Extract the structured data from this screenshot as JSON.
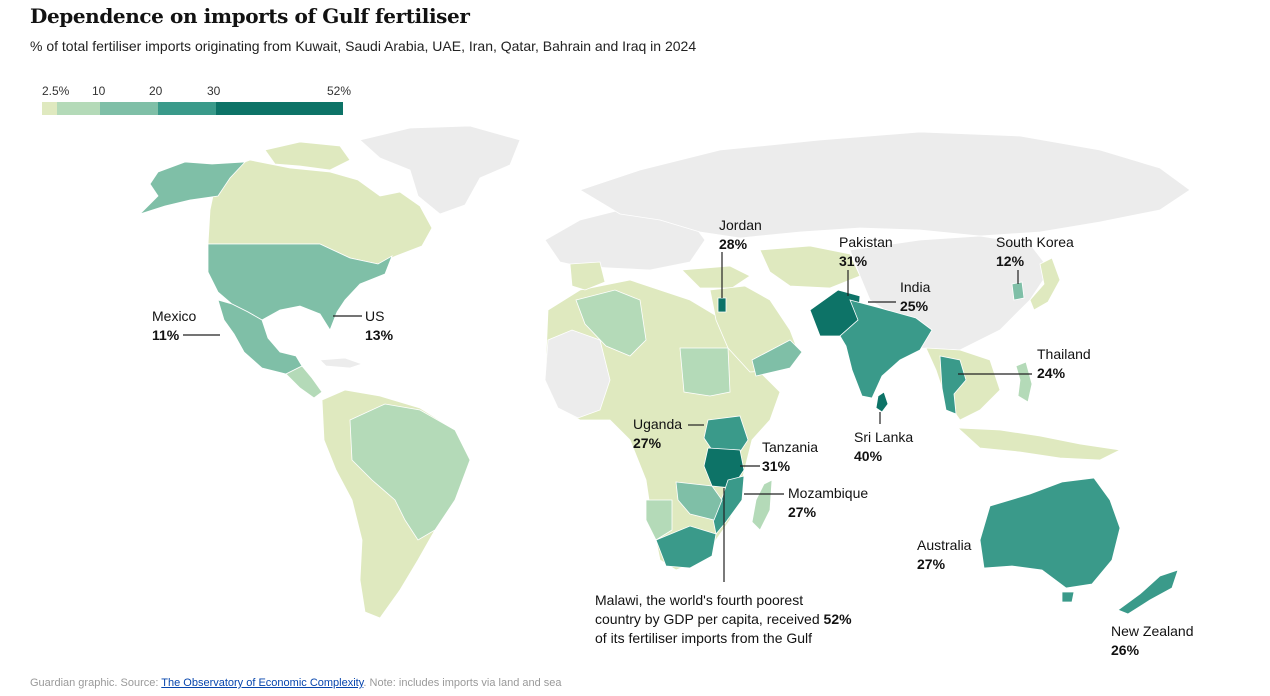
{
  "title": "Dependence on imports of Gulf fertiliser",
  "subtitle": "% of total fertiliser imports originating from Kuwait, Saudi Arabia, UAE, Iran, Qatar, Bahrain and Iraq in 2024",
  "legend": {
    "labels": [
      "2.5%",
      "10",
      "20",
      "30",
      "52%"
    ],
    "colors": [
      "#dfe9bf",
      "#b4dab8",
      "#7fbfa7",
      "#3a9a8a",
      "#0d7367"
    ]
  },
  "colors": {
    "no_data": "#ececec",
    "bin1": "#dfe9bf",
    "bin2": "#b4dab8",
    "bin3": "#7fbfa7",
    "bin4": "#3a9a8a",
    "bin5": "#0d7367",
    "leader": "#222222"
  },
  "annotations": {
    "jordan": {
      "name": "Jordan",
      "pct": "28%"
    },
    "pakistan": {
      "name": "Pakistan",
      "pct": "31%"
    },
    "south_korea": {
      "name": "South Korea",
      "pct": "12%"
    },
    "india": {
      "name": "India",
      "pct": "25%"
    },
    "mexico": {
      "name": "Mexico",
      "pct": "11%"
    },
    "us": {
      "name": "US",
      "pct": "13%"
    },
    "thailand": {
      "name": "Thailand",
      "pct": "24%"
    },
    "uganda": {
      "name": "Uganda",
      "pct": "27%"
    },
    "tanzania": {
      "name": "Tanzania",
      "pct": "31%"
    },
    "sri_lanka": {
      "name": "Sri Lanka",
      "pct": "40%"
    },
    "mozambique": {
      "name": "Mozambique",
      "pct": "27%"
    },
    "australia": {
      "name": "Australia",
      "pct": "27%"
    },
    "new_zealand": {
      "name": "New Zealand",
      "pct": "26%"
    }
  },
  "malawi_note": {
    "line1": "Malawi, the world's fourth poorest",
    "line2_prefix": "country by GDP per capita, received ",
    "line2_value": "52%",
    "line3": "of its fertiliser imports from the Gulf"
  },
  "footer": {
    "prefix": "Guardian graphic. Source: ",
    "source_link": "The Observatory of Economic Complexity",
    "suffix": ". Note: includes imports via land and sea"
  }
}
